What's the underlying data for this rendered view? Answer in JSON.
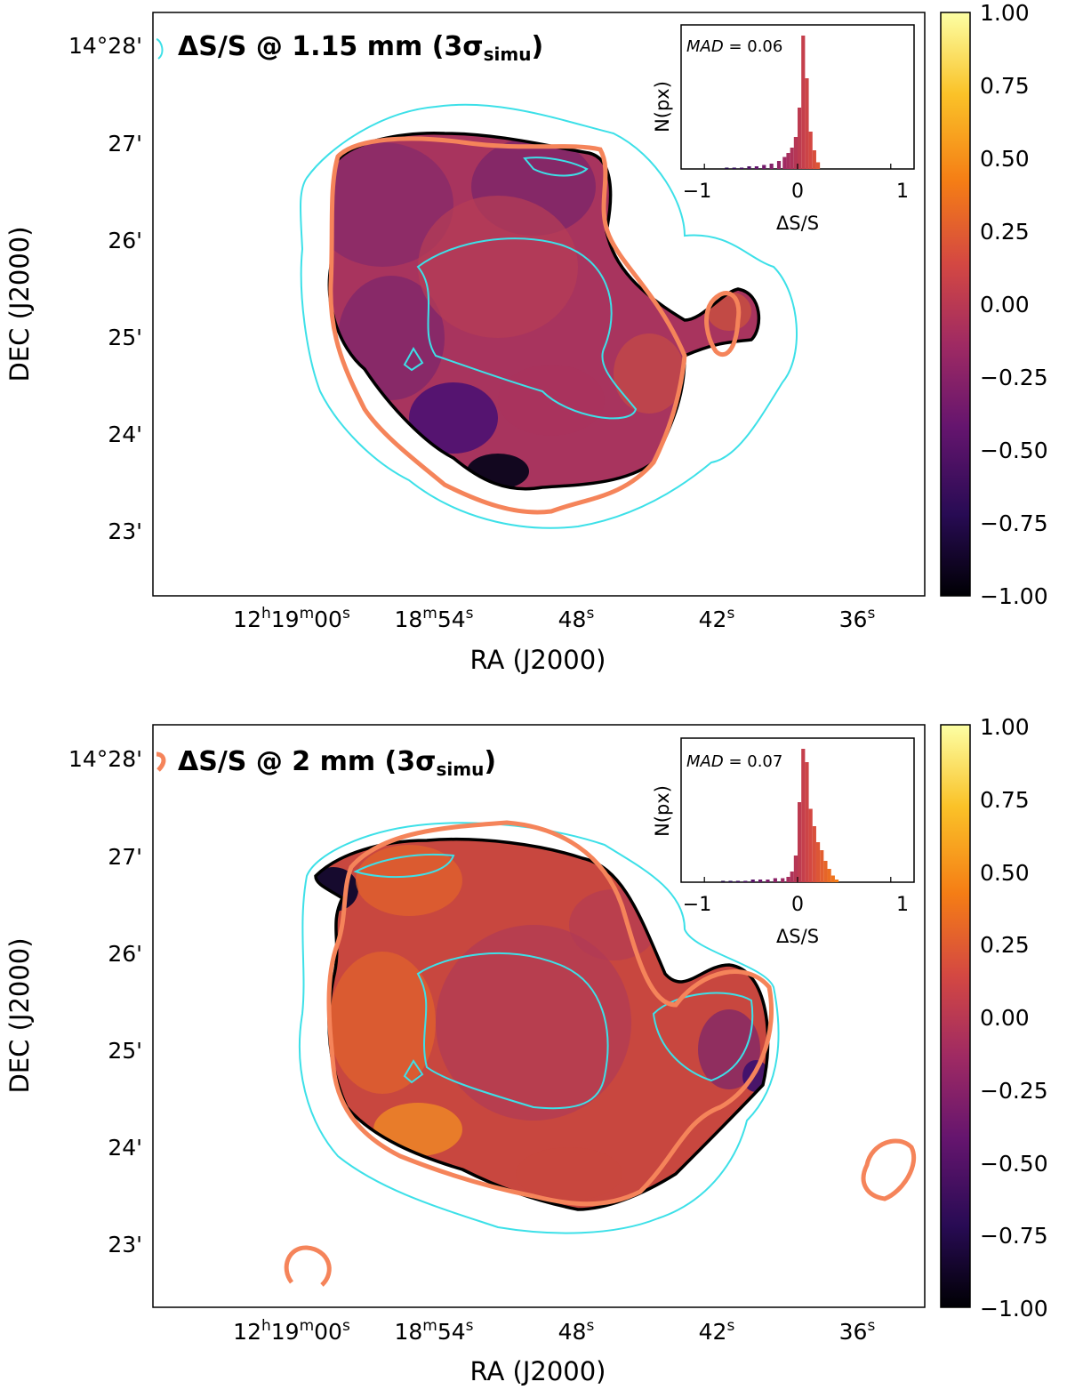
{
  "colors": {
    "contour_cyan": "#3de0e8",
    "contour_black": "#000000",
    "contour_orange": "#f5845a",
    "colormap": [
      "#000004",
      "#280b54",
      "#65156e",
      "#9f2a63",
      "#d44842",
      "#f57d15",
      "#fac228",
      "#fcffa4"
    ]
  },
  "chart_data": [
    {
      "type": "heatmap",
      "title_main": "ΔS/S @ 1.15 mm (3σ",
      "title_sub": "simu",
      "title_close": ")",
      "xlabel": "RA (J2000)",
      "ylabel": "DEC  (J2000)",
      "x_ticks": [
        "12h19m00s",
        "18m54s",
        "48s",
        "42s",
        "36s"
      ],
      "x_tick_parts": [
        {
          "a": "12",
          "b": "h",
          "c": "19",
          "d": "m",
          "e": "00",
          "f": "s"
        },
        {
          "a": "",
          "b": "",
          "c": "18",
          "d": "m",
          "e": "54",
          "f": "s"
        },
        {
          "a": "",
          "b": "",
          "c": "",
          "d": "",
          "e": "48",
          "f": "s"
        },
        {
          "a": "",
          "b": "",
          "c": "",
          "d": "",
          "e": "42",
          "f": "s"
        },
        {
          "a": "",
          "b": "",
          "c": "",
          "d": "",
          "e": "36",
          "f": "s"
        }
      ],
      "y_ticks": [
        "14°28'",
        "27'",
        "26'",
        "25'",
        "24'",
        "23'"
      ],
      "colorbar": {
        "min": -1.0,
        "max": 1.0,
        "ticks": [
          "1.00",
          "0.75",
          "0.50",
          "0.25",
          "0.00",
          "−0.25",
          "−0.50",
          "−0.75",
          "−1.00"
        ]
      },
      "inset": {
        "xlabel": "ΔS/S",
        "ylabel": "N(px)",
        "x_ticks": [
          "−1",
          "0",
          "1"
        ],
        "mad_label": "MAD",
        "mad_value": "= 0.06",
        "mad": 0.06,
        "hist_bins": [
          -0.76,
          -0.68,
          -0.6,
          -0.52,
          -0.44,
          -0.36,
          -0.28,
          -0.2,
          -0.14,
          -0.1,
          -0.06,
          -0.02,
          0.02,
          0.06,
          0.1,
          0.14,
          0.18,
          0.22
        ],
        "hist_counts": [
          1,
          1,
          1,
          2,
          2,
          3,
          4,
          6,
          9,
          12,
          16,
          24,
          46,
          100,
          68,
          28,
          14,
          5
        ]
      }
    },
    {
      "type": "heatmap",
      "title_main": "ΔS/S @ 2 mm (3σ",
      "title_sub": "simu",
      "title_close": ")",
      "xlabel": "RA (J2000)",
      "ylabel": "DEC  (J2000)",
      "x_ticks": [
        "12h19m00s",
        "18m54s",
        "48s",
        "42s",
        "36s"
      ],
      "x_tick_parts": [
        {
          "a": "12",
          "b": "h",
          "c": "19",
          "d": "m",
          "e": "00",
          "f": "s"
        },
        {
          "a": "",
          "b": "",
          "c": "18",
          "d": "m",
          "e": "54",
          "f": "s"
        },
        {
          "a": "",
          "b": "",
          "c": "",
          "d": "",
          "e": "48",
          "f": "s"
        },
        {
          "a": "",
          "b": "",
          "c": "",
          "d": "",
          "e": "42",
          "f": "s"
        },
        {
          "a": "",
          "b": "",
          "c": "",
          "d": "",
          "e": "36",
          "f": "s"
        }
      ],
      "y_ticks": [
        "14°28'",
        "27'",
        "26'",
        "25'",
        "24'",
        "23'"
      ],
      "colorbar": {
        "min": -1.0,
        "max": 1.0,
        "ticks": [
          "1.00",
          "0.75",
          "0.50",
          "0.25",
          "0.00",
          "−0.25",
          "−0.50",
          "−0.75",
          "−1.00"
        ]
      },
      "inset": {
        "xlabel": "ΔS/S",
        "ylabel": "N(px)",
        "x_ticks": [
          "−1",
          "0",
          "1"
        ],
        "mad_label": "MAD",
        "mad_value": "= 0.07",
        "mad": 0.07,
        "hist_bins": [
          -0.8,
          -0.72,
          -0.64,
          -0.56,
          -0.48,
          -0.4,
          -0.32,
          -0.24,
          -0.16,
          -0.1,
          -0.06,
          -0.02,
          0.02,
          0.06,
          0.1,
          0.14,
          0.18,
          0.22,
          0.26,
          0.3,
          0.34,
          0.38,
          0.42
        ],
        "hist_counts": [
          1,
          1,
          1,
          1,
          2,
          2,
          2,
          3,
          3,
          4,
          8,
          20,
          60,
          100,
          90,
          55,
          42,
          30,
          24,
          16,
          10,
          5,
          2
        ]
      }
    }
  ]
}
